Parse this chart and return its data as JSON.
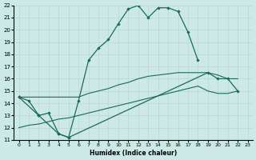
{
  "xlabel": "Humidex (Indice chaleur)",
  "xlim": [
    -0.5,
    23.5
  ],
  "ylim": [
    11,
    22
  ],
  "xticks": [
    0,
    1,
    2,
    3,
    4,
    5,
    6,
    7,
    8,
    9,
    10,
    11,
    12,
    13,
    14,
    15,
    16,
    17,
    18,
    19,
    20,
    21,
    22,
    23
  ],
  "yticks": [
    11,
    12,
    13,
    14,
    15,
    16,
    17,
    18,
    19,
    20,
    21,
    22
  ],
  "bg_color": "#cce9e5",
  "line_color": "#1a6b5a",
  "grid_color": "#b8d8d4",
  "series1_x": [
    0,
    1,
    2,
    3,
    4,
    5,
    6,
    7,
    8,
    9,
    10,
    11,
    12,
    13,
    14,
    15,
    16,
    17,
    18
  ],
  "series1_y": [
    14.5,
    14.2,
    13.0,
    13.2,
    11.5,
    11.2,
    14.2,
    17.5,
    18.5,
    19.2,
    20.5,
    21.7,
    22.0,
    21.0,
    21.8,
    21.8,
    21.5,
    19.8,
    17.5
  ],
  "series2_x": [
    0,
    2,
    4,
    5,
    19,
    20,
    21,
    22
  ],
  "series2_y": [
    14.5,
    13.0,
    11.5,
    11.2,
    16.5,
    16.0,
    16.0,
    15.0
  ],
  "series3_x": [
    0,
    1,
    2,
    3,
    4,
    5,
    6,
    7,
    8,
    9,
    10,
    11,
    12,
    13,
    14,
    15,
    16,
    17,
    18,
    19,
    20,
    21,
    22
  ],
  "series3_y": [
    14.5,
    14.5,
    14.5,
    14.5,
    14.5,
    14.5,
    14.5,
    14.8,
    15.0,
    15.2,
    15.5,
    15.7,
    16.0,
    16.2,
    16.3,
    16.4,
    16.5,
    16.5,
    16.5,
    16.5,
    16.3,
    16.0,
    16.0
  ],
  "series4_x": [
    0,
    1,
    2,
    3,
    4,
    5,
    6,
    7,
    8,
    9,
    10,
    11,
    12,
    13,
    14,
    15,
    16,
    17,
    18,
    19,
    20,
    21,
    22
  ],
  "series4_y": [
    12.0,
    12.2,
    12.3,
    12.5,
    12.7,
    12.8,
    13.0,
    13.2,
    13.4,
    13.6,
    13.8,
    14.0,
    14.2,
    14.4,
    14.6,
    14.8,
    15.0,
    15.2,
    15.4,
    15.0,
    14.8,
    14.8,
    15.0
  ]
}
